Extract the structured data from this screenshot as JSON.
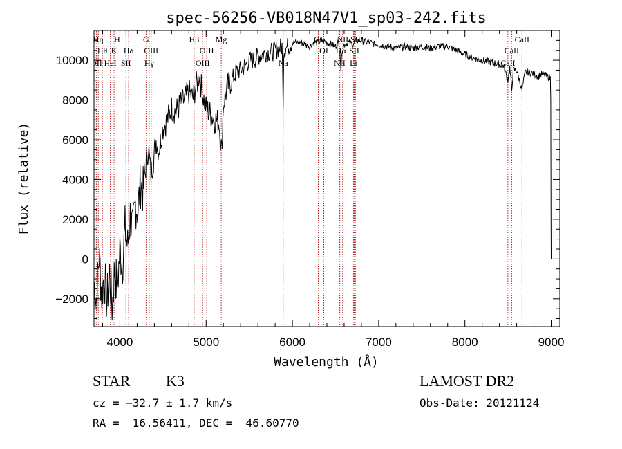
{
  "chart_data": {
    "type": "line",
    "title": "spec-56256-VB018N47V1_sp03-242.fits",
    "xlabel": "Wavelength (Å)",
    "ylabel": "Flux (relative)",
    "xlim": [
      3700,
      9100
    ],
    "ylim": [
      -3400,
      11500
    ],
    "x_ticks": [
      4000,
      5000,
      6000,
      7000,
      8000,
      9000
    ],
    "y_ticks": [
      -2000,
      0,
      2000,
      4000,
      6000,
      8000,
      10000
    ],
    "grid": false,
    "line_color": "#000000",
    "marker_color": "#b22222",
    "series": [
      {
        "x": [
          3700,
          3730,
          3760,
          3790,
          3820,
          3850,
          3880,
          3910,
          3940,
          3970,
          4000,
          4030,
          4060,
          4090,
          4120,
          4150,
          4180,
          4210,
          4240,
          4270,
          4300,
          4330,
          4360,
          4390,
          4420,
          4450,
          4500,
          4550,
          4600,
          4650,
          4700,
          4750,
          4800,
          4850,
          4880,
          4900,
          4920,
          4950,
          5000,
          5050,
          5100,
          5150,
          5180,
          5200,
          5250,
          5300,
          5350,
          5400,
          5450,
          5500,
          5550,
          5600,
          5650,
          5700,
          5750,
          5800,
          5850,
          5880,
          5893,
          5900,
          5950,
          6000,
          6050,
          6100,
          6150,
          6200,
          6250,
          6300,
          6350,
          6400,
          6450,
          6500,
          6530,
          6550,
          6563,
          6575,
          6600,
          6650,
          6700,
          6750,
          6800,
          6850,
          6900,
          6950,
          7000,
          7100,
          7200,
          7300,
          7400,
          7500,
          7600,
          7700,
          7800,
          7900,
          8000,
          8100,
          8200,
          8300,
          8400,
          8450,
          8498,
          8520,
          8542,
          8560,
          8600,
          8662,
          8700,
          8750,
          8800,
          8850,
          8900,
          8950,
          8990,
          8995,
          8998,
          9000
        ],
        "values": [
          -1200,
          -2000,
          200,
          -1800,
          -800,
          -2200,
          -700,
          -2400,
          -500,
          -1500,
          400,
          -200,
          1500,
          600,
          2200,
          1300,
          2800,
          2500,
          3800,
          3400,
          4600,
          5600,
          4300,
          5000,
          6000,
          5500,
          6600,
          7000,
          7600,
          7400,
          7800,
          8000,
          8400,
          8100,
          8700,
          8900,
          9300,
          8500,
          7600,
          7300,
          7000,
          6900,
          5400,
          7800,
          8700,
          9000,
          9400,
          9500,
          9700,
          10000,
          10000,
          10200,
          10300,
          10400,
          10400,
          10500,
          10600,
          10700,
          8000,
          10500,
          10700,
          10900,
          10900,
          10900,
          10800,
          10700,
          10900,
          10900,
          11000,
          10900,
          10800,
          10700,
          10900,
          10600,
          9500,
          10500,
          10800,
          10900,
          10800,
          11000,
          11000,
          10900,
          10900,
          10800,
          10800,
          10700,
          10600,
          10700,
          10600,
          10700,
          10600,
          10700,
          10700,
          10500,
          10300,
          10100,
          10000,
          9900,
          9800,
          9700,
          9000,
          9600,
          8500,
          9500,
          9500,
          8500,
          9400,
          9400,
          9300,
          9200,
          9300,
          9200,
          9100,
          8000,
          1800,
          0
        ]
      }
    ],
    "line_markers": [
      {
        "x": 3750,
        "label": "Hη",
        "row": 0
      },
      {
        "x": 3797,
        "label": "Hθ",
        "row": 1
      },
      {
        "x": 3727,
        "label": "OII",
        "row": 2
      },
      {
        "x": 3889,
        "label": "HeI",
        "row": 2
      },
      {
        "x": 3933,
        "label": "K",
        "row": 1
      },
      {
        "x": 3968,
        "label": "H",
        "row": 0
      },
      {
        "x": 4070,
        "label": "SII",
        "row": 2
      },
      {
        "x": 4101,
        "label": "Hδ",
        "row": 1
      },
      {
        "x": 4304,
        "label": "G",
        "row": 0
      },
      {
        "x": 4340,
        "label": "Hγ",
        "row": 2
      },
      {
        "x": 4363,
        "label": "OIII",
        "row": 1
      },
      {
        "x": 4861,
        "label": "Hβ",
        "row": 0
      },
      {
        "x": 4959,
        "label": "OIII",
        "row": 2
      },
      {
        "x": 5007,
        "label": "OIII",
        "row": 1
      },
      {
        "x": 5175,
        "label": "Mg",
        "row": 0
      },
      {
        "x": 5893,
        "label": "Na",
        "row": 2
      },
      {
        "x": 6300,
        "label": "OI",
        "row": 0
      },
      {
        "x": 6364,
        "label": "OI",
        "row": 1
      },
      {
        "x": 6548,
        "label": "NII",
        "row": 2
      },
      {
        "x": 6563,
        "label": "Hα",
        "row": 1
      },
      {
        "x": 6583,
        "label": "NII",
        "row": 0
      },
      {
        "x": 6708,
        "label": "Li",
        "row": 2
      },
      {
        "x": 6717,
        "label": "SII",
        "row": 1
      },
      {
        "x": 6731,
        "label": "SII",
        "row": 0
      },
      {
        "x": 8498,
        "label": "CaII",
        "row": 2
      },
      {
        "x": 8542,
        "label": "CaII",
        "row": 1
      },
      {
        "x": 8662,
        "label": "CaII",
        "row": 0
      }
    ]
  },
  "info": {
    "class": "STAR",
    "subclass": "K3",
    "survey": "LAMOST DR2",
    "redshift": "cz = −32.7 ± 1.7 km/s",
    "obs_date": "Obs-Date: 20121124",
    "coords": "RA =  16.56411, DEC =  46.60770"
  }
}
